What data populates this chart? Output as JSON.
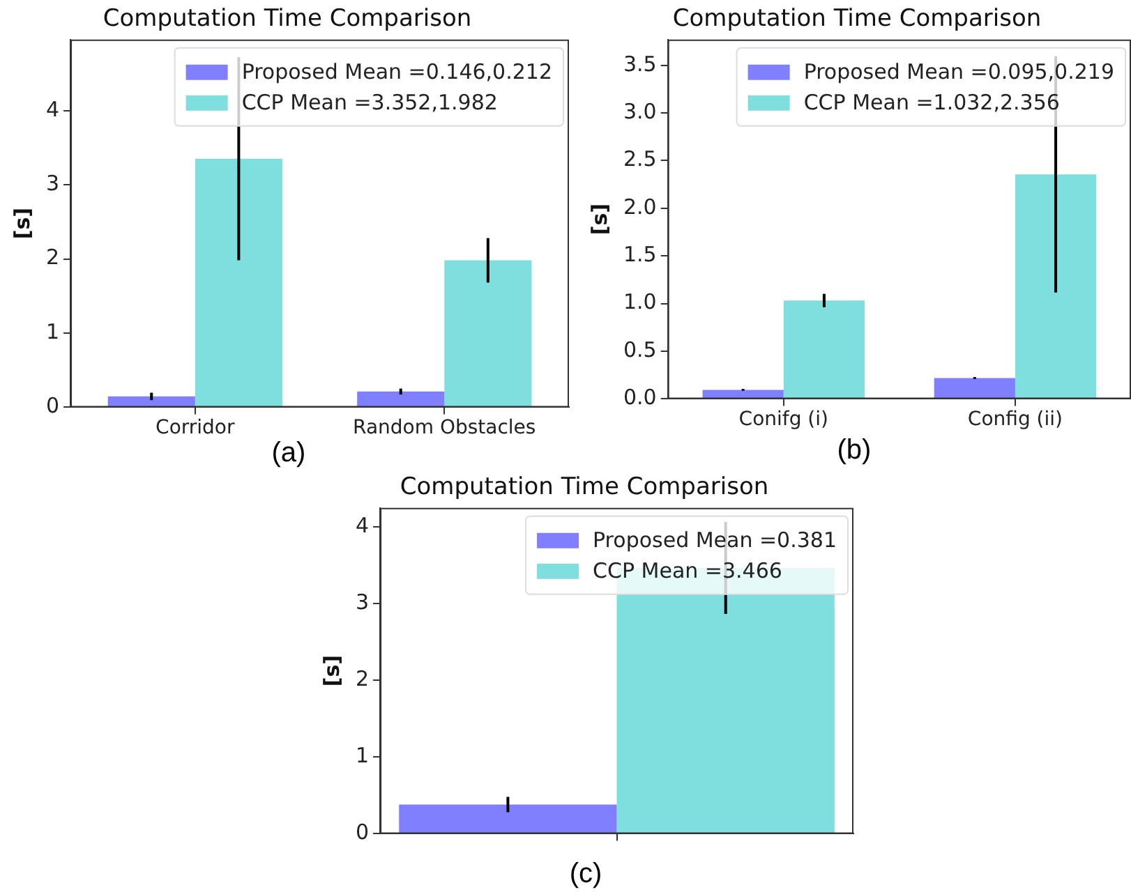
{
  "chart_data": [
    {
      "type": "bar",
      "title": "Computation Time Comparison",
      "ylabel": "[s]",
      "categories": [
        "Corridor",
        "Random Obstacles"
      ],
      "series": [
        {
          "name": "Proposed Mean =0.146,0.212",
          "color": "#8080ff",
          "values": [
            0.146,
            0.212
          ],
          "errors": [
            0.05,
            0.04
          ]
        },
        {
          "name": "CCP Mean =3.352,1.982",
          "color": "#7fdfdf",
          "values": [
            3.352,
            1.982
          ],
          "errors": [
            1.37,
            0.3
          ]
        }
      ],
      "ylim": [
        0,
        4.96
      ],
      "yticks": [
        0,
        1,
        2,
        3,
        4
      ],
      "legend": "top right",
      "annotations": [
        "(a)"
      ]
    },
    {
      "type": "bar",
      "title": "Computation Time Comparison",
      "ylabel": "[s]",
      "categories": [
        "Conifg (i)",
        "Config (ii)"
      ],
      "series": [
        {
          "name": "Proposed Mean =0.095,0.219",
          "color": "#8080ff",
          "values": [
            0.095,
            0.219
          ],
          "errors": [
            0.01,
            0.01
          ]
        },
        {
          "name": "CCP Mean =1.032,2.356",
          "color": "#7fdfdf",
          "values": [
            1.032,
            2.356
          ],
          "errors": [
            0.07,
            1.24
          ]
        }
      ],
      "ylim": [
        0,
        3.77
      ],
      "yticks": [
        {
          "value": 0,
          "label": "0.0"
        },
        {
          "value": 0.5,
          "label": "0.5"
        },
        {
          "value": 1,
          "label": "1.0"
        },
        {
          "value": 1.5,
          "label": "1.5"
        },
        {
          "value": 2,
          "label": "2.0"
        },
        {
          "value": 2.5,
          "label": "2.5"
        },
        {
          "value": 3,
          "label": "3.0"
        },
        {
          "value": 3.5,
          "label": "3.5"
        }
      ],
      "legend": "top right",
      "annotations": [
        "(b)"
      ]
    },
    {
      "type": "bar",
      "title": "Computation Time Comparison",
      "ylabel": "[s]",
      "categories": [
        null
      ],
      "series": [
        {
          "name": "Proposed Mean =0.381",
          "color": "#8080ff",
          "values": [
            0.381
          ],
          "errors": [
            0.1
          ]
        },
        {
          "name": "CCP Mean =3.466",
          "color": "#7fdfdf",
          "values": [
            3.466
          ],
          "errors": [
            0.6
          ]
        }
      ],
      "ylim": [
        0,
        4.25
      ],
      "yticks": [
        0,
        1,
        2,
        3,
        4
      ],
      "legend": "top right",
      "annotations": [
        "(c)"
      ]
    }
  ]
}
